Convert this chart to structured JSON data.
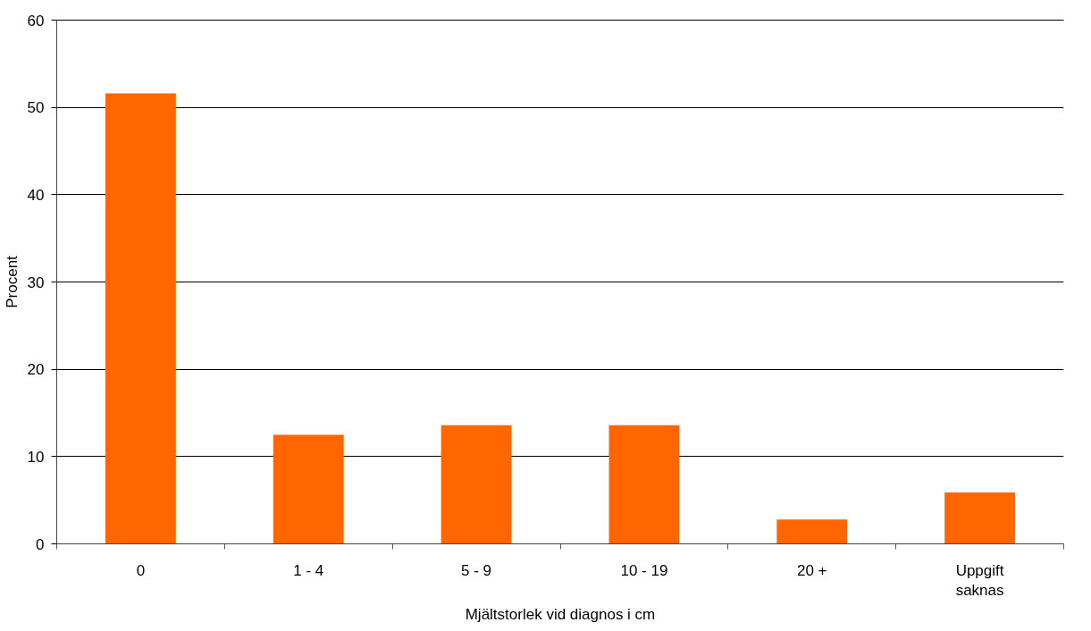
{
  "chart_data": {
    "type": "bar",
    "xlabel": "Mjältstorlek vid diagnos i cm",
    "ylabel": "Procent",
    "categories": [
      "0",
      "1 - 4",
      "5 - 9",
      "10 - 19",
      "20 +",
      "Uppgift\nsaknas"
    ],
    "series": [
      {
        "color": "#ff6600",
        "values": [
          51.6,
          12.5,
          13.6,
          13.6,
          2.8,
          5.9
        ]
      }
    ],
    "ylim": [
      0,
      60
    ],
    "yticks": [
      0,
      10,
      20,
      30,
      40,
      50,
      60
    ],
    "grid": "y"
  }
}
